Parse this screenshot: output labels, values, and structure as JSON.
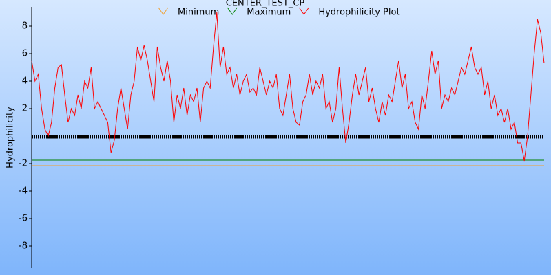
{
  "chart_data": {
    "type": "line",
    "title": "CENTER_TEST_CP",
    "y_label": "Hydrophilicity",
    "ylim": [
      -9.5,
      9.4
    ],
    "yticks": [
      8,
      6,
      4,
      2,
      -2,
      -4,
      -6,
      -8
    ],
    "reference_lines": [
      {
        "name": "Minimum",
        "color": "#f0a030",
        "value": -2.15
      },
      {
        "name": "Maximum",
        "color": "#008000",
        "value": -1.75
      },
      {
        "color": "#000000",
        "value": -0.05
      }
    ],
    "series": [
      {
        "name": "Hydrophilicity Plot",
        "color": "#ff0000",
        "values": [
          5.5,
          4.0,
          4.5,
          2,
          0.5,
          0,
          1,
          3.5,
          5,
          5.2,
          3,
          1,
          2,
          1.5,
          3,
          2,
          4,
          3.5,
          5,
          2,
          2.5,
          2,
          1.5,
          1,
          -1.2,
          -0.3,
          2,
          3.5,
          2,
          0.5,
          3,
          4,
          6.5,
          5.5,
          6.6,
          5.5,
          4,
          2.5,
          6.5,
          5,
          4,
          5.5,
          4,
          1,
          3,
          2,
          3.5,
          1.5,
          3,
          2.5,
          3.5,
          1,
          3.5,
          4,
          3.5,
          6.5,
          9,
          5,
          6.5,
          4.5,
          5,
          3.5,
          4.5,
          3,
          4,
          4.5,
          3.2,
          3.5,
          3,
          5,
          4,
          3,
          4,
          3.5,
          4.5,
          2,
          1.5,
          3,
          4.5,
          2,
          1,
          0.8,
          2.5,
          3,
          4.5,
          3,
          4,
          3.5,
          4.5,
          2,
          2.5,
          1,
          2,
          5,
          2,
          -0.5,
          1,
          3,
          4.5,
          3,
          4,
          5,
          2.5,
          3.5,
          2,
          1,
          2.5,
          1.5,
          3,
          2.5,
          4,
          5.5,
          3.5,
          4.5,
          2,
          2.5,
          1,
          0.5,
          3,
          2,
          4,
          6.2,
          4.5,
          5.5,
          2,
          3,
          2.5,
          3.5,
          3,
          4,
          5,
          4.5,
          5.5,
          6.5,
          5,
          4.5,
          5,
          3,
          4,
          2,
          3,
          1.5,
          2,
          1,
          2,
          0.5,
          1,
          -0.5,
          -0.5,
          -1.8,
          0,
          3,
          6,
          8.5,
          7.5,
          5.3
        ]
      }
    ]
  }
}
